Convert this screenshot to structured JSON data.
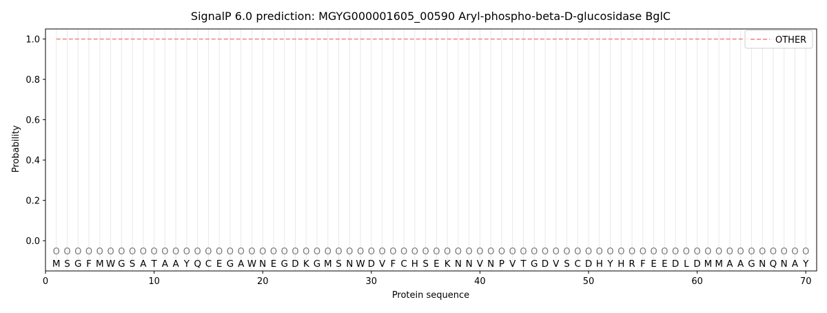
{
  "chart_data": {
    "type": "line",
    "title": "SignalP 6.0 prediction: MGYG000001605_00590 Aryl-phospho-beta-D-glucosidase BglC",
    "xlabel": "Protein sequence",
    "ylabel": "Probability",
    "xlim": [
      0,
      71
    ],
    "ylim": [
      -0.15,
      1.05
    ],
    "x_ticks": [
      0,
      10,
      20,
      30,
      40,
      50,
      60,
      70
    ],
    "y_ticks": [
      0.0,
      0.2,
      0.4,
      0.6,
      0.8,
      1.0
    ],
    "y_tick_labels": [
      "0.0",
      "0.2",
      "0.4",
      "0.6",
      "0.8",
      "1.0"
    ],
    "sequence": [
      "M",
      "S",
      "G",
      "F",
      "M",
      "W",
      "G",
      "S",
      "A",
      "T",
      "A",
      "A",
      "Y",
      "Q",
      "C",
      "E",
      "G",
      "A",
      "W",
      "N",
      "E",
      "G",
      "D",
      "K",
      "G",
      "M",
      "S",
      "N",
      "W",
      "D",
      "V",
      "F",
      "C",
      "H",
      "S",
      "E",
      "K",
      "N",
      "N",
      "V",
      "N",
      "P",
      "V",
      "T",
      "G",
      "D",
      "V",
      "S",
      "C",
      "D",
      "H",
      "Y",
      "H",
      "R",
      "F",
      "E",
      "E",
      "D",
      "L",
      "D",
      "M",
      "M",
      "A",
      "A",
      "G",
      "N",
      "Q",
      "N",
      "A",
      "Y"
    ],
    "region_label": "O",
    "series": [
      {
        "name": "OTHER",
        "color": "#f08080",
        "style": "dashed",
        "x": [
          1,
          70
        ],
        "values": [
          1.0,
          1.0
        ]
      }
    ],
    "grid": "vertical lines at each residue",
    "legend": "top-right"
  }
}
